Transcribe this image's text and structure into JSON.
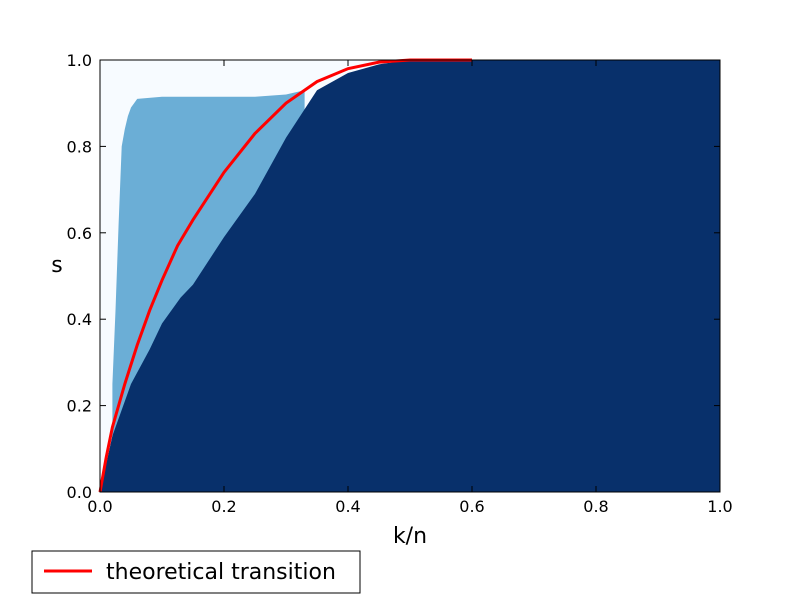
{
  "chart_data": {
    "type": "heatmap",
    "title": "",
    "xlabel": "k/n",
    "ylabel": "s",
    "xlim": [
      0.0,
      1.0
    ],
    "ylim": [
      0.0,
      1.0
    ],
    "x_ticks": [
      "0.0",
      "0.2",
      "0.4",
      "0.6",
      "0.8",
      "1.0"
    ],
    "y_ticks": [
      "0.0",
      "0.2",
      "0.4",
      "0.6",
      "0.8",
      "1.0"
    ],
    "grid": false,
    "legend_position": "below-left",
    "colors": {
      "empty": "#f7fbff",
      "partial": "#6baed6",
      "full": "#08306b",
      "theory": "#ff0000",
      "frame": "#000000"
    },
    "regions": {
      "full_boundary": {
        "k_over_n": [
          0.0,
          0.02,
          0.05,
          0.08,
          0.1,
          0.13,
          0.15,
          0.2,
          0.25,
          0.3,
          0.35,
          0.4,
          0.45,
          0.5,
          0.55,
          1.0
        ],
        "s": [
          0.0,
          0.13,
          0.25,
          0.33,
          0.39,
          0.45,
          0.48,
          0.59,
          0.69,
          0.82,
          0.93,
          0.97,
          0.99,
          1.0,
          1.0,
          1.0
        ]
      },
      "partial_boundary": {
        "k_over_n": [
          0.02,
          0.025,
          0.03,
          0.035,
          0.04,
          0.045,
          0.05,
          0.055,
          0.06,
          0.1,
          0.15,
          0.2,
          0.25,
          0.3,
          0.33
        ],
        "s": [
          0.25,
          0.42,
          0.62,
          0.8,
          0.84,
          0.87,
          0.89,
          0.9,
          0.91,
          0.915,
          0.915,
          0.915,
          0.915,
          0.92,
          0.93
        ]
      }
    },
    "series": [
      {
        "name": "theoretical transition",
        "x": [
          0.0,
          0.01,
          0.02,
          0.04,
          0.06,
          0.08,
          0.1,
          0.125,
          0.15,
          0.2,
          0.25,
          0.3,
          0.35,
          0.4,
          0.45,
          0.5,
          0.55,
          0.6
        ],
        "y": [
          0.0,
          0.08,
          0.15,
          0.25,
          0.34,
          0.42,
          0.49,
          0.57,
          0.63,
          0.74,
          0.83,
          0.9,
          0.95,
          0.98,
          0.995,
          1.0,
          1.0,
          1.0
        ]
      }
    ]
  }
}
